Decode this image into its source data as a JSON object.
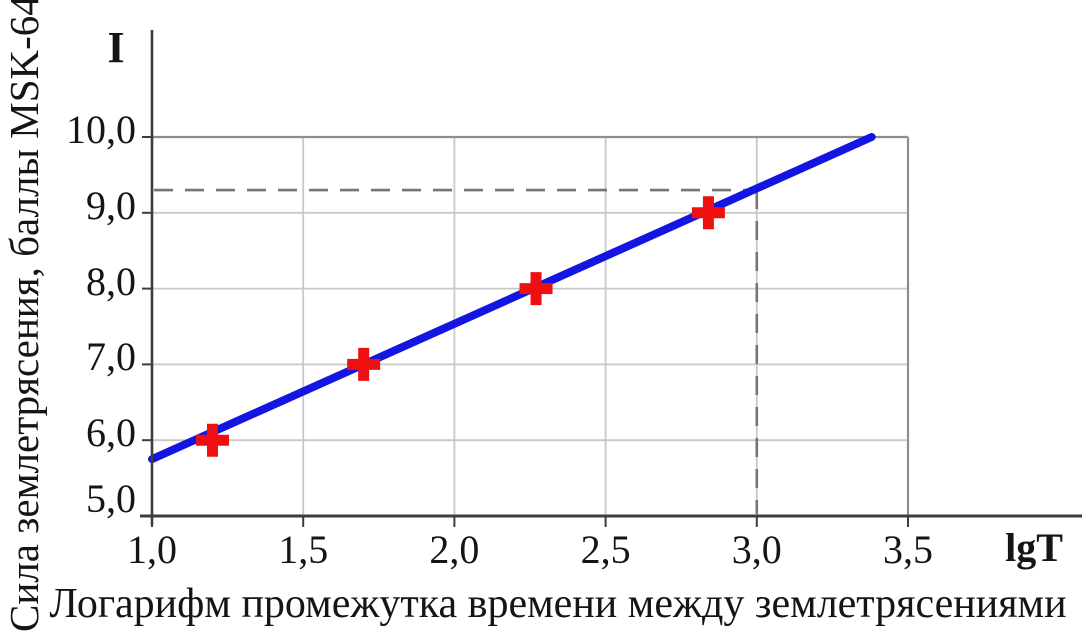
{
  "chart_data": {
    "type": "scatter",
    "title": "",
    "grid": true,
    "legend": false,
    "x_axis": {
      "symbol": "lgT",
      "title": "Логарифм промежутка времени между землетрясениями",
      "min": 1.0,
      "max": 3.5,
      "tick_values": [
        1.0,
        1.5,
        2.0,
        2.5,
        3.0,
        3.5
      ],
      "tick_labels": [
        "1,0",
        "1,5",
        "2,0",
        "2,5",
        "3,0",
        "3,5"
      ]
    },
    "y_axis": {
      "symbol": "I",
      "title": "Сила землетрясения, баллы MSK-64",
      "min": 5.0,
      "max": 10.0,
      "tick_values": [
        5.0,
        6.0,
        7.0,
        8.0,
        9.0,
        10.0
      ],
      "tick_labels": [
        "5,0",
        "6,0",
        "7,0",
        "8,0",
        "9,0",
        "10,0"
      ]
    },
    "points": [
      {
        "x": 1.2,
        "y": 6.0
      },
      {
        "x": 1.7,
        "y": 7.0
      },
      {
        "x": 2.27,
        "y": 8.0
      },
      {
        "x": 2.84,
        "y": 9.0
      }
    ],
    "trend_line": {
      "x1": 1.0,
      "y1": 5.75,
      "x2": 3.38,
      "y2": 10.0
    },
    "reference_lines": {
      "horizontal_y": 9.3,
      "vertical_x": 3.0
    },
    "colors": {
      "line": "#1515e1",
      "marker": "#ee1010",
      "grid": "#c8c8c8",
      "frame": "#8e8e8e",
      "axis": "#3d3d3d",
      "reference": "#767676",
      "text": "#151515"
    }
  }
}
